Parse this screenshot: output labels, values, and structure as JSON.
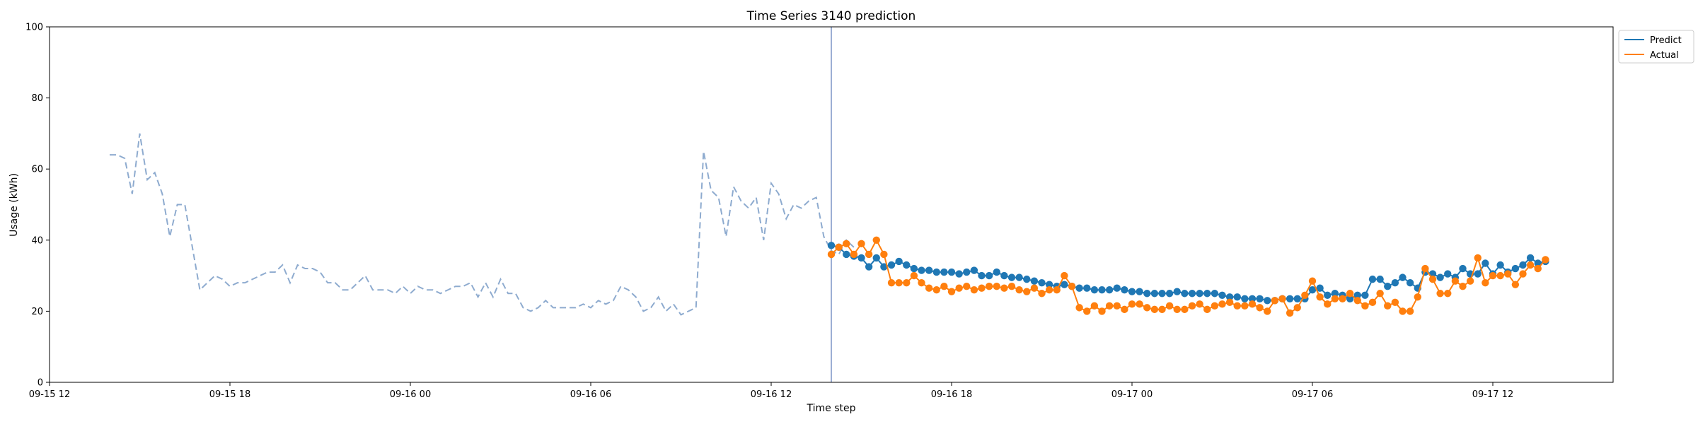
{
  "chart_data": {
    "type": "line",
    "title": "Time Series 3140 prediction",
    "xlabel": "Time step",
    "ylabel": "Usage (kWh)",
    "ylim": [
      0,
      100
    ],
    "yticks": [
      0,
      20,
      40,
      60,
      80,
      100
    ],
    "xlim": [
      "09-15 12:00",
      "09-17 16:00"
    ],
    "xticks": [
      {
        "label": "09-15 12",
        "t": "09-15 12:00"
      },
      {
        "label": "09-15 18",
        "t": "09-15 18:00"
      },
      {
        "label": "09-16 00",
        "t": "09-16 00:00"
      },
      {
        "label": "09-16 06",
        "t": "09-16 06:00"
      },
      {
        "label": "09-16 12",
        "t": "09-16 12:00"
      },
      {
        "label": "09-16 18",
        "t": "09-16 18:00"
      },
      {
        "label": "09-17 00",
        "t": "09-17 00:00"
      },
      {
        "label": "09-17 06",
        "t": "09-17 06:00"
      },
      {
        "label": "09-17 12",
        "t": "09-17 12:00"
      }
    ],
    "legend_position": "top-right",
    "grid": false,
    "split_time": "09-16 14:00",
    "history": {
      "color": "#8eabcf",
      "style": "dashed",
      "start": "09-15 14:00",
      "step_minutes": 15,
      "values": [
        64,
        64,
        63,
        53,
        70,
        57,
        59,
        53,
        41,
        50,
        50,
        38,
        26,
        28,
        30,
        29,
        27,
        28,
        28,
        29,
        30,
        31,
        31,
        33,
        28,
        33,
        32,
        32,
        31,
        28,
        28,
        26,
        26,
        28,
        30,
        26,
        26,
        26,
        25,
        27,
        25,
        27,
        26,
        26,
        25,
        26,
        27,
        27,
        28,
        24,
        28,
        24,
        29,
        25,
        25,
        21,
        20,
        21,
        23,
        21,
        21,
        21,
        21,
        22,
        21,
        23,
        22,
        23,
        27,
        26,
        24,
        20,
        21,
        24,
        20,
        22,
        19,
        20,
        21,
        65,
        54,
        52,
        41,
        55,
        51,
        49,
        52,
        40,
        56,
        53,
        46,
        50,
        49,
        51,
        52,
        41,
        37,
        36,
        40,
        38
      ]
    },
    "series": [
      {
        "name": "Predict",
        "color": "#1f77b4",
        "start": "09-16 14:00",
        "step_minutes": 15,
        "values": [
          38.5,
          38,
          36,
          35.5,
          35,
          32.5,
          35,
          32.5,
          33,
          34,
          33,
          32,
          31.5,
          31.5,
          31,
          31,
          31,
          30.5,
          31,
          31.5,
          30,
          30,
          31,
          30,
          29.5,
          29.5,
          29,
          28.5,
          28,
          27.5,
          27,
          27.5,
          27,
          26.5,
          26.5,
          26,
          26,
          26,
          26.5,
          26,
          25.5,
          25.5,
          25,
          25,
          25,
          25,
          25.5,
          25,
          25,
          25,
          25,
          25,
          24.5,
          24,
          24,
          23.5,
          23.5,
          23.5,
          23,
          23,
          23.5,
          23.5,
          23.5,
          23.5,
          26,
          26.5,
          24.5,
          25,
          24.5,
          23.5,
          24.5,
          24.5,
          29,
          29,
          27,
          28,
          29.5,
          28,
          26.5,
          31,
          30.5,
          29.5,
          30.5,
          29.5,
          32,
          30.5,
          30.5,
          33.5,
          30.5,
          33,
          31,
          32,
          33,
          35,
          33.5,
          34
        ]
      },
      {
        "name": "Actual",
        "color": "#ff7f0e",
        "start": "09-16 14:00",
        "step_minutes": 15,
        "values": [
          36,
          38,
          39,
          36,
          39,
          36,
          40,
          36,
          28,
          28,
          28,
          30,
          28,
          26.5,
          26,
          27,
          25.5,
          26.5,
          27,
          26,
          26.5,
          27,
          27,
          26.5,
          27,
          26,
          25.5,
          26.5,
          25,
          26,
          26,
          30,
          27,
          21,
          20,
          21.5,
          20,
          21.5,
          21.5,
          20.5,
          22,
          22,
          21,
          20.5,
          20.5,
          21.5,
          20.5,
          20.5,
          21.5,
          22,
          20.5,
          21.5,
          22,
          22.5,
          21.5,
          21.5,
          22,
          21,
          20,
          23,
          23.5,
          19.5,
          21,
          24.5,
          28.5,
          24,
          22,
          23.5,
          23.5,
          25,
          23,
          21.5,
          22.5,
          25,
          21.5,
          22.5,
          20,
          20,
          24,
          32,
          29,
          25,
          25,
          28.5,
          27,
          28.5,
          35,
          28,
          30,
          30,
          30.5,
          27.5,
          30.5,
          33,
          32,
          34.5
        ]
      }
    ]
  }
}
